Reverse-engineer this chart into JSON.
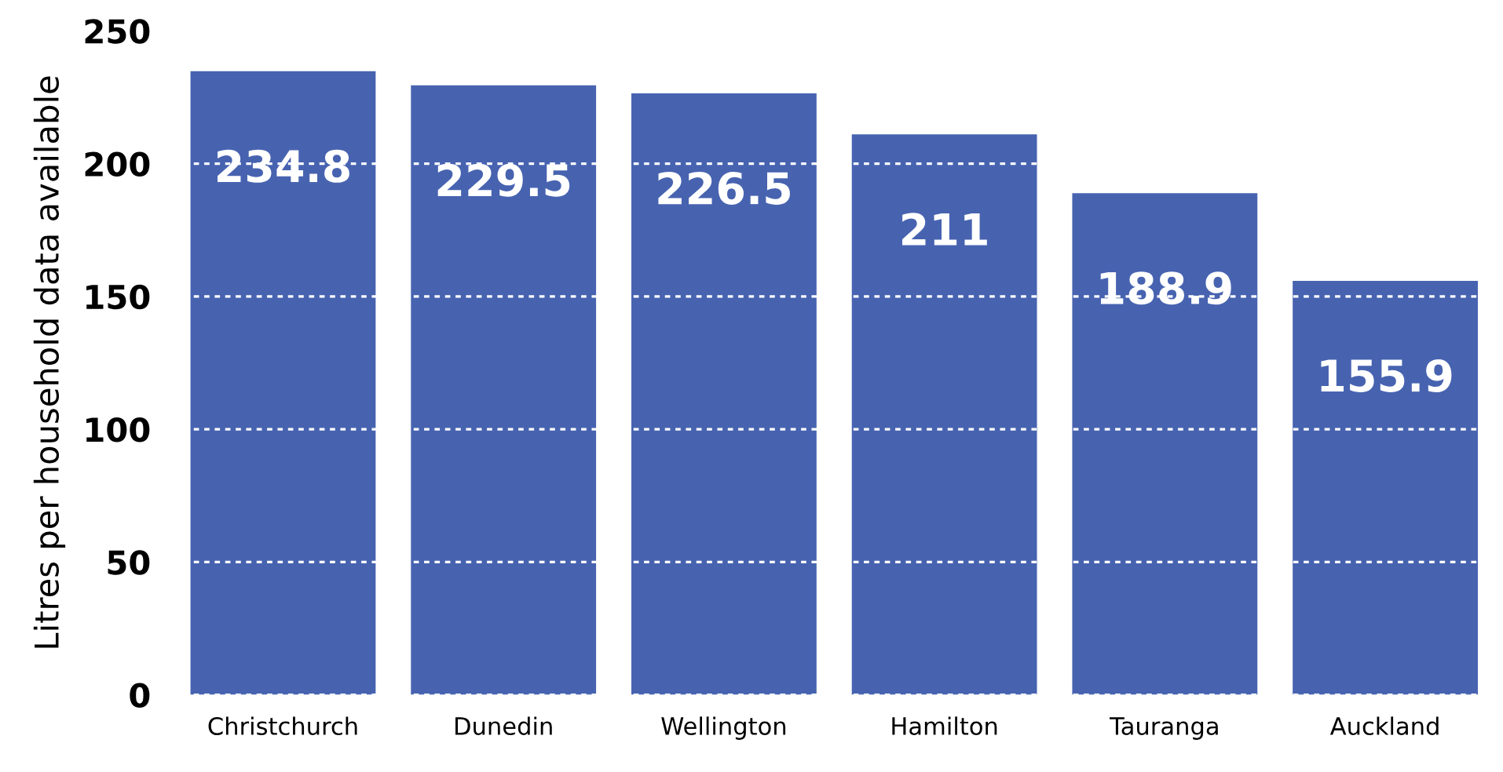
{
  "chart_data": {
    "type": "bar",
    "ylabel": "Litres per household data available",
    "categories": [
      "Christchurch",
      "Dunedin",
      "Wellington",
      "Hamilton",
      "Tauranga",
      "Auckland"
    ],
    "values": [
      234.8,
      229.5,
      226.5,
      211,
      188.9,
      155.9
    ],
    "color": "#4763b0",
    "ylim": [
      0,
      250
    ],
    "yticks": [
      0,
      50,
      100,
      150,
      200,
      250
    ],
    "grid": "y",
    "data_labels": true
  }
}
